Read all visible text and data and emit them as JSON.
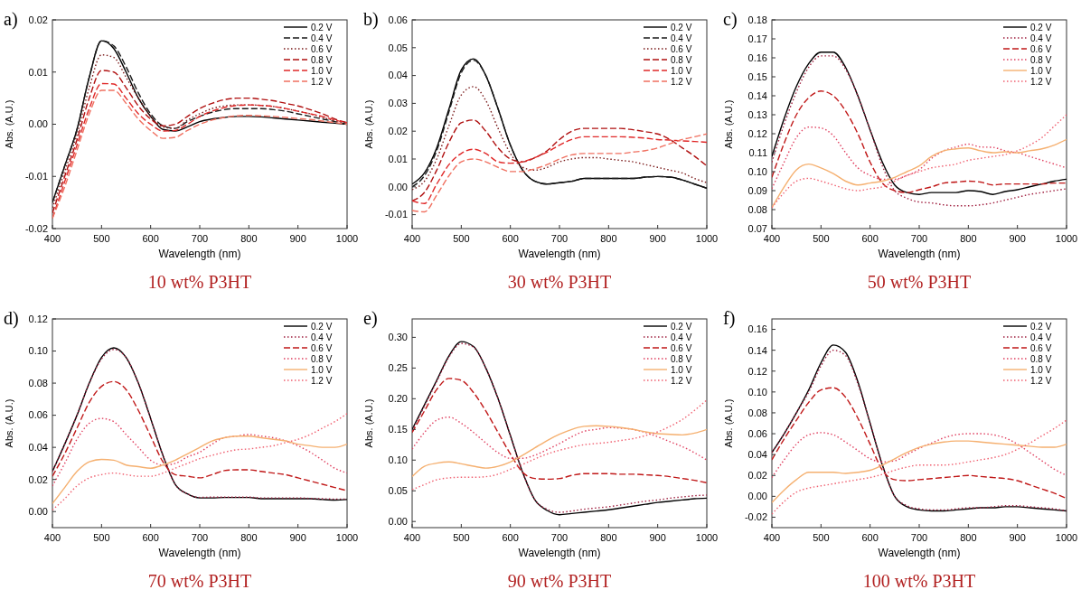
{
  "chart_data": [
    {
      "type": "line",
      "title": "10 wt% P3HT",
      "annotations": [
        "a)"
      ],
      "xlabel": "Wavelength (nm)",
      "ylabel": "Abs. (A.U.)",
      "legend": "top right",
      "xlim": [
        400,
        1000
      ],
      "xticks": [
        400,
        500,
        600,
        700,
        800,
        900,
        1000
      ],
      "ylim": [
        -0.02,
        0.02
      ],
      "yticks": [
        -0.02,
        -0.01,
        {
          "value": 0,
          "label": "0.00"
        },
        0.01,
        0.02
      ],
      "x": [
        400,
        425,
        450,
        475,
        500,
        525,
        550,
        575,
        600,
        625,
        650,
        675,
        700,
        725,
        750,
        775,
        800,
        825,
        850,
        875,
        900,
        925,
        950,
        975,
        1000
      ],
      "series": [
        {
          "name": "0.2 V",
          "color": "#000000",
          "line_style": "solid",
          "values": [
            -0.015,
            -0.008,
            -0.001,
            0.009,
            0.016,
            0.0145,
            0.01,
            0.005,
            0.0015,
            -0.001,
            -0.0013,
            -0.0005,
            0.0005,
            0.001,
            0.0013,
            0.0015,
            0.0015,
            0.0014,
            0.0012,
            0.001,
            0.0008,
            0.0006,
            0.0004,
            0.0002,
            0.0
          ]
        },
        {
          "name": "0.4 V",
          "color": "#1a1a1a",
          "line_style": "dashed",
          "values": [
            -0.015,
            -0.008,
            -0.001,
            0.009,
            0.016,
            0.015,
            0.011,
            0.006,
            0.002,
            -0.0003,
            -0.0008,
            0.0005,
            0.0015,
            0.0023,
            0.0028,
            0.003,
            0.003,
            0.003,
            0.0028,
            0.0025,
            0.002,
            0.0015,
            0.001,
            0.0005,
            0.0
          ]
        },
        {
          "name": "0.6 V",
          "color": "#7a1a1a",
          "line_style": "dotted",
          "values": [
            -0.016,
            -0.009,
            -0.002,
            0.007,
            0.0133,
            0.0128,
            0.009,
            0.005,
            0.0015,
            -0.0005,
            -0.0008,
            0.0008,
            0.002,
            0.003,
            0.0035,
            0.0037,
            0.0037,
            0.0036,
            0.0034,
            0.003,
            0.0025,
            0.002,
            0.0013,
            0.0007,
            0.0003
          ]
        },
        {
          "name": "0.8 V",
          "color": "#b01010",
          "line_style": "dashed",
          "values": [
            -0.017,
            -0.01,
            -0.003,
            0.005,
            0.0103,
            0.01,
            0.007,
            0.0035,
            0.001,
            -0.0003,
            0.0,
            0.0015,
            0.003,
            0.004,
            0.0047,
            0.005,
            0.005,
            0.0048,
            0.0045,
            0.004,
            0.0035,
            0.0028,
            0.002,
            0.001,
            0.0003
          ]
        },
        {
          "name": "1.0 V",
          "color": "#e02828",
          "line_style": "dashed",
          "values": [
            -0.018,
            -0.011,
            -0.004,
            0.003,
            0.0078,
            0.0077,
            0.005,
            0.002,
            0.0,
            -0.0013,
            -0.0012,
            0.0,
            0.0015,
            0.0025,
            0.0032,
            0.0036,
            0.0037,
            0.0036,
            0.0034,
            0.003,
            0.0025,
            0.002,
            0.0015,
            0.0008,
            0.0003
          ]
        },
        {
          "name": "1.2 V",
          "color": "#f07060",
          "line_style": "dashed",
          "values": [
            -0.018,
            -0.012,
            -0.005,
            0.002,
            0.0065,
            0.0065,
            0.004,
            0.001,
            -0.0012,
            -0.0027,
            -0.0025,
            -0.0012,
            0.0,
            0.0008,
            0.0013,
            0.0016,
            0.0017,
            0.0016,
            0.0015,
            0.0013,
            0.0011,
            0.0009,
            0.0006,
            0.0003,
            0.0
          ]
        }
      ]
    },
    {
      "type": "line",
      "title": "30 wt% P3HT",
      "annotations": [
        "b)"
      ],
      "xlabel": "Wavelength (nm)",
      "ylabel": "Abs. (A.U.)",
      "legend": "top right",
      "xlim": [
        400,
        1000
      ],
      "xticks": [
        400,
        500,
        600,
        700,
        800,
        900,
        1000
      ],
      "ylim": [
        -0.015,
        0.06
      ],
      "yticks": [
        -0.01,
        {
          "value": 0,
          "label": "0.00"
        },
        0.01,
        0.02,
        0.03,
        0.04,
        0.05,
        0.06
      ],
      "x": [
        400,
        425,
        450,
        475,
        500,
        525,
        550,
        575,
        600,
        625,
        650,
        675,
        700,
        725,
        750,
        775,
        800,
        825,
        850,
        875,
        900,
        925,
        950,
        975,
        1000
      ],
      "series": [
        {
          "name": "0.2 V",
          "color": "#000000",
          "line_style": "solid",
          "values": [
            0.001,
            0.005,
            0.014,
            0.028,
            0.042,
            0.046,
            0.04,
            0.028,
            0.015,
            0.006,
            0.002,
            0.001,
            0.0015,
            0.002,
            0.003,
            0.003,
            0.003,
            0.003,
            0.003,
            0.0035,
            0.0037,
            0.0035,
            0.0025,
            0.001,
            -0.0005
          ]
        },
        {
          "name": "0.4 V",
          "color": "#1a1a1a",
          "line_style": "dashed",
          "values": [
            0.0,
            0.004,
            0.013,
            0.027,
            0.041,
            0.0455,
            0.04,
            0.028,
            0.015,
            0.006,
            0.002,
            0.001,
            0.0015,
            0.002,
            0.003,
            0.003,
            0.003,
            0.003,
            0.003,
            0.0035,
            0.0037,
            0.0035,
            0.0025,
            0.001,
            -0.0005
          ]
        },
        {
          "name": "0.6 V",
          "color": "#7a1a1a",
          "line_style": "dotted",
          "values": [
            -0.001,
            0.002,
            0.01,
            0.022,
            0.033,
            0.036,
            0.031,
            0.021,
            0.012,
            0.007,
            0.006,
            0.007,
            0.009,
            0.01,
            0.0105,
            0.0105,
            0.01,
            0.0095,
            0.009,
            0.008,
            0.007,
            0.006,
            0.005,
            0.003,
            0.0015
          ]
        },
        {
          "name": "0.8 V",
          "color": "#b01010",
          "line_style": "dashed",
          "values": [
            -0.005,
            -0.002,
            0.006,
            0.016,
            0.023,
            0.024,
            0.02,
            0.014,
            0.01,
            0.009,
            0.0105,
            0.013,
            0.017,
            0.02,
            0.021,
            0.021,
            0.021,
            0.021,
            0.0205,
            0.0198,
            0.019,
            0.017,
            0.014,
            0.011,
            0.0075
          ]
        },
        {
          "name": "1.0 V",
          "color": "#e02828",
          "line_style": "dashed",
          "values": [
            -0.005,
            -0.006,
            0.001,
            0.008,
            0.012,
            0.0135,
            0.012,
            0.009,
            0.0085,
            0.009,
            0.0105,
            0.0125,
            0.015,
            0.017,
            0.018,
            0.018,
            0.018,
            0.018,
            0.0178,
            0.0175,
            0.017,
            0.0168,
            0.0165,
            0.0163,
            0.016
          ]
        },
        {
          "name": "1.2 V",
          "color": "#f07060",
          "line_style": "dashed",
          "values": [
            -0.0085,
            -0.009,
            -0.003,
            0.004,
            0.009,
            0.01,
            0.009,
            0.007,
            0.0055,
            0.0055,
            0.0065,
            0.008,
            0.01,
            0.0115,
            0.012,
            0.012,
            0.012,
            0.012,
            0.0125,
            0.013,
            0.014,
            0.0155,
            0.017,
            0.018,
            0.019
          ]
        }
      ]
    },
    {
      "type": "line",
      "title": "50 wt% P3HT",
      "annotations": [
        "c)"
      ],
      "xlabel": "Wavelength (nm)",
      "ylabel": "Abs. (A.U.)",
      "legend": "top right",
      "xlim": [
        400,
        1000
      ],
      "xticks": [
        400,
        500,
        600,
        700,
        800,
        900,
        1000
      ],
      "ylim": [
        0.07,
        0.18
      ],
      "yticks": [
        0.07,
        0.08,
        0.09,
        {
          "value": 0.1,
          "label": "0.10"
        },
        0.11,
        0.12,
        0.13,
        0.14,
        0.15,
        0.16,
        0.17,
        0.18
      ],
      "x": [
        400,
        425,
        450,
        475,
        500,
        525,
        550,
        575,
        600,
        625,
        650,
        675,
        700,
        725,
        750,
        775,
        800,
        825,
        850,
        875,
        900,
        925,
        950,
        975,
        1000
      ],
      "series": [
        {
          "name": "0.2 V",
          "color": "#000000",
          "line_style": "solid",
          "values": [
            0.108,
            0.128,
            0.145,
            0.157,
            0.163,
            0.163,
            0.155,
            0.14,
            0.122,
            0.105,
            0.093,
            0.089,
            0.088,
            0.089,
            0.089,
            0.089,
            0.09,
            0.0895,
            0.088,
            0.0895,
            0.0905,
            0.092,
            0.0935,
            0.095,
            0.096
          ]
        },
        {
          "name": "0.4 V",
          "color": "#a02040",
          "line_style": "dotted",
          "values": [
            0.105,
            0.125,
            0.142,
            0.155,
            0.161,
            0.161,
            0.154,
            0.14,
            0.122,
            0.103,
            0.09,
            0.086,
            0.084,
            0.0835,
            0.0825,
            0.082,
            0.082,
            0.0825,
            0.0835,
            0.085,
            0.0865,
            0.088,
            0.089,
            0.09,
            0.091
          ]
        },
        {
          "name": "0.6 V",
          "color": "#c01818",
          "line_style": "dashed",
          "values": [
            0.097,
            0.115,
            0.13,
            0.139,
            0.1425,
            0.14,
            0.132,
            0.12,
            0.105,
            0.094,
            0.09,
            0.089,
            0.0905,
            0.092,
            0.094,
            0.0945,
            0.095,
            0.0945,
            0.093,
            0.0935,
            0.0935,
            0.0935,
            0.0935,
            0.094,
            0.094
          ]
        },
        {
          "name": "0.8 V",
          "color": "#e04060",
          "line_style": "dotted",
          "values": [
            0.091,
            0.105,
            0.118,
            0.1235,
            0.123,
            0.119,
            0.11,
            0.102,
            0.098,
            0.096,
            0.096,
            0.098,
            0.101,
            0.107,
            0.111,
            0.113,
            0.1145,
            0.113,
            0.1128,
            0.111,
            0.11,
            0.108,
            0.106,
            0.104,
            0.102
          ]
        },
        {
          "name": "1.0 V",
          "color": "#f5b070",
          "line_style": "solid",
          "values": [
            0.081,
            0.092,
            0.101,
            0.104,
            0.102,
            0.099,
            0.095,
            0.093,
            0.094,
            0.095,
            0.097,
            0.1,
            0.103,
            0.108,
            0.111,
            0.112,
            0.1125,
            0.111,
            0.11,
            0.1105,
            0.11,
            0.111,
            0.112,
            0.114,
            0.117
          ]
        },
        {
          "name": "1.2 V",
          "color": "#f06070",
          "line_style": "dotted",
          "values": [
            0.081,
            0.089,
            0.095,
            0.0965,
            0.095,
            0.093,
            0.091,
            0.09,
            0.091,
            0.092,
            0.095,
            0.098,
            0.1,
            0.102,
            0.103,
            0.104,
            0.106,
            0.107,
            0.108,
            0.109,
            0.111,
            0.114,
            0.118,
            0.124,
            0.13
          ]
        }
      ]
    },
    {
      "type": "line",
      "title": "70 wt% P3HT",
      "annotations": [
        "d)"
      ],
      "xlabel": "Wavelength (nm)",
      "ylabel": "Abs. (A.U.)",
      "legend": "top right",
      "xlim": [
        400,
        1000
      ],
      "xticks": [
        400,
        500,
        600,
        700,
        800,
        900,
        1000
      ],
      "ylim": [
        -0.01,
        0.12
      ],
      "yticks": [
        {
          "value": 0,
          "label": "0.00"
        },
        0.02,
        0.04,
        0.06,
        0.08,
        {
          "value": 0.1,
          "label": "0.10"
        },
        0.12
      ],
      "x": [
        400,
        425,
        450,
        475,
        500,
        525,
        550,
        575,
        600,
        625,
        650,
        675,
        700,
        725,
        750,
        775,
        800,
        825,
        850,
        875,
        900,
        925,
        950,
        975,
        1000
      ],
      "series": [
        {
          "name": "0.2 V",
          "color": "#000000",
          "line_style": "solid",
          "values": [
            0.025,
            0.042,
            0.06,
            0.08,
            0.096,
            0.102,
            0.096,
            0.08,
            0.058,
            0.035,
            0.017,
            0.011,
            0.0085,
            0.0085,
            0.0088,
            0.0088,
            0.0088,
            0.008,
            0.008,
            0.008,
            0.008,
            0.008,
            0.0075,
            0.0072,
            0.0075
          ]
        },
        {
          "name": "0.4 V",
          "color": "#a02040",
          "line_style": "dotted",
          "values": [
            0.025,
            0.042,
            0.06,
            0.08,
            0.095,
            0.101,
            0.096,
            0.08,
            0.058,
            0.035,
            0.017,
            0.011,
            0.0088,
            0.009,
            0.009,
            0.009,
            0.009,
            0.0085,
            0.0085,
            0.0085,
            0.0085,
            0.0082,
            0.008,
            0.0078,
            0.0078
          ]
        },
        {
          "name": "0.6 V",
          "color": "#c01818",
          "line_style": "dashed",
          "values": [
            0.022,
            0.036,
            0.052,
            0.068,
            0.078,
            0.081,
            0.076,
            0.063,
            0.047,
            0.031,
            0.023,
            0.022,
            0.021,
            0.023,
            0.0255,
            0.026,
            0.026,
            0.025,
            0.024,
            0.023,
            0.021,
            0.019,
            0.017,
            0.015,
            0.013
          ]
        },
        {
          "name": "0.8 V",
          "color": "#e04060",
          "line_style": "dotted",
          "values": [
            0.016,
            0.03,
            0.045,
            0.055,
            0.058,
            0.056,
            0.048,
            0.04,
            0.032,
            0.029,
            0.03,
            0.034,
            0.037,
            0.042,
            0.046,
            0.047,
            0.048,
            0.047,
            0.046,
            0.044,
            0.041,
            0.037,
            0.032,
            0.027,
            0.024
          ]
        },
        {
          "name": "1.0 V",
          "color": "#f5b070",
          "line_style": "solid",
          "values": [
            0.005,
            0.015,
            0.025,
            0.031,
            0.0325,
            0.032,
            0.029,
            0.028,
            0.027,
            0.029,
            0.032,
            0.036,
            0.04,
            0.044,
            0.046,
            0.047,
            0.047,
            0.046,
            0.045,
            0.044,
            0.042,
            0.041,
            0.04,
            0.04,
            0.042
          ]
        },
        {
          "name": "1.2 V",
          "color": "#f06070",
          "line_style": "dotted",
          "values": [
            0.001,
            0.008,
            0.016,
            0.021,
            0.023,
            0.024,
            0.023,
            0.022,
            0.022,
            0.024,
            0.027,
            0.03,
            0.033,
            0.035,
            0.037,
            0.0385,
            0.039,
            0.04,
            0.041,
            0.043,
            0.045,
            0.048,
            0.052,
            0.056,
            0.061
          ]
        }
      ]
    },
    {
      "type": "line",
      "title": "90 wt% P3HT",
      "annotations": [
        "e)"
      ],
      "xlabel": "Wavelength (nm)",
      "ylabel": "Abs. (A.U.)",
      "legend": "top right",
      "xlim": [
        400,
        1000
      ],
      "xticks": [
        400,
        500,
        600,
        700,
        800,
        900,
        1000
      ],
      "ylim": [
        -0.01,
        0.33
      ],
      "yticks": [
        {
          "value": 0,
          "label": "0.00"
        },
        0.05,
        {
          "value": 0.1,
          "label": "0.10"
        },
        0.15,
        {
          "value": 0.2,
          "label": "0.20"
        },
        0.25,
        {
          "value": 0.3,
          "label": "0.30"
        }
      ],
      "x": [
        400,
        425,
        450,
        475,
        500,
        525,
        550,
        575,
        600,
        625,
        650,
        675,
        700,
        725,
        750,
        775,
        800,
        825,
        850,
        875,
        900,
        925,
        950,
        975,
        1000
      ],
      "series": [
        {
          "name": "0.2 V",
          "color": "#000000",
          "line_style": "solid",
          "values": [
            0.15,
            0.19,
            0.23,
            0.27,
            0.293,
            0.285,
            0.25,
            0.2,
            0.14,
            0.08,
            0.035,
            0.018,
            0.011,
            0.013,
            0.015,
            0.017,
            0.019,
            0.022,
            0.025,
            0.028,
            0.031,
            0.033,
            0.035,
            0.037,
            0.038
          ]
        },
        {
          "name": "0.4 V",
          "color": "#a02040",
          "line_style": "dotted",
          "values": [
            0.148,
            0.188,
            0.228,
            0.268,
            0.29,
            0.284,
            0.25,
            0.2,
            0.14,
            0.08,
            0.035,
            0.02,
            0.015,
            0.017,
            0.02,
            0.022,
            0.024,
            0.027,
            0.03,
            0.033,
            0.035,
            0.038,
            0.04,
            0.042,
            0.043
          ]
        },
        {
          "name": "0.6 V",
          "color": "#c01818",
          "line_style": "dashed",
          "values": [
            0.145,
            0.18,
            0.215,
            0.233,
            0.23,
            0.21,
            0.18,
            0.145,
            0.11,
            0.08,
            0.07,
            0.069,
            0.07,
            0.075,
            0.078,
            0.078,
            0.078,
            0.077,
            0.077,
            0.076,
            0.075,
            0.073,
            0.07,
            0.067,
            0.063
          ]
        },
        {
          "name": "0.8 V",
          "color": "#e04060",
          "line_style": "dotted",
          "values": [
            0.118,
            0.145,
            0.165,
            0.17,
            0.16,
            0.145,
            0.128,
            0.112,
            0.103,
            0.103,
            0.108,
            0.117,
            0.127,
            0.138,
            0.147,
            0.15,
            0.153,
            0.152,
            0.15,
            0.145,
            0.138,
            0.13,
            0.122,
            0.112,
            0.1
          ]
        },
        {
          "name": "1.0 V",
          "color": "#f5b070",
          "line_style": "solid",
          "values": [
            0.073,
            0.09,
            0.095,
            0.097,
            0.094,
            0.09,
            0.087,
            0.09,
            0.097,
            0.108,
            0.12,
            0.132,
            0.142,
            0.15,
            0.155,
            0.156,
            0.155,
            0.153,
            0.15,
            0.146,
            0.143,
            0.142,
            0.141,
            0.144,
            0.15
          ]
        },
        {
          "name": "1.2 V",
          "color": "#f06070",
          "line_style": "dotted",
          "values": [
            0.052,
            0.06,
            0.068,
            0.071,
            0.072,
            0.072,
            0.073,
            0.077,
            0.085,
            0.093,
            0.102,
            0.11,
            0.116,
            0.121,
            0.125,
            0.127,
            0.129,
            0.132,
            0.135,
            0.14,
            0.146,
            0.155,
            0.166,
            0.181,
            0.198
          ]
        }
      ]
    },
    {
      "type": "line",
      "title": "100 wt% P3HT",
      "annotations": [
        "f)"
      ],
      "xlabel": "Wavelength (nm)",
      "ylabel": "Abs. (A.U.)",
      "legend": "top right",
      "xlim": [
        400,
        1000
      ],
      "xticks": [
        400,
        500,
        600,
        700,
        800,
        900,
        1000
      ],
      "ylim": [
        -0.03,
        0.17
      ],
      "yticks": [
        -0.02,
        {
          "value": 0,
          "label": "0.00"
        },
        0.02,
        0.04,
        0.06,
        0.08,
        {
          "value": 0.1,
          "label": "0.10"
        },
        0.12,
        0.14,
        0.16
      ],
      "x": [
        400,
        425,
        450,
        475,
        500,
        525,
        550,
        575,
        600,
        625,
        650,
        675,
        700,
        725,
        750,
        775,
        800,
        825,
        850,
        875,
        900,
        925,
        950,
        975,
        1000
      ],
      "series": [
        {
          "name": "0.2 V",
          "color": "#000000",
          "line_style": "solid",
          "values": [
            0.042,
            0.06,
            0.08,
            0.102,
            0.128,
            0.145,
            0.138,
            0.11,
            0.07,
            0.03,
            0.0,
            -0.01,
            -0.013,
            -0.014,
            -0.014,
            -0.013,
            -0.012,
            -0.011,
            -0.011,
            -0.01,
            -0.01,
            -0.011,
            -0.012,
            -0.013,
            -0.014
          ]
        },
        {
          "name": "0.4 V",
          "color": "#a02040",
          "line_style": "dotted",
          "values": [
            0.042,
            0.06,
            0.08,
            0.1,
            0.125,
            0.14,
            0.135,
            0.108,
            0.07,
            0.03,
            0.0,
            -0.009,
            -0.012,
            -0.013,
            -0.013,
            -0.012,
            -0.011,
            -0.011,
            -0.01,
            -0.009,
            -0.009,
            -0.01,
            -0.011,
            -0.012,
            -0.014
          ]
        },
        {
          "name": "0.6 V",
          "color": "#c01818",
          "line_style": "dashed",
          "values": [
            0.035,
            0.055,
            0.073,
            0.09,
            0.102,
            0.104,
            0.095,
            0.075,
            0.05,
            0.025,
            0.016,
            0.015,
            0.016,
            0.017,
            0.018,
            0.019,
            0.02,
            0.019,
            0.018,
            0.017,
            0.015,
            0.011,
            0.007,
            0.003,
            -0.002
          ]
        },
        {
          "name": "0.8 V",
          "color": "#e04060",
          "line_style": "dotted",
          "values": [
            0.018,
            0.035,
            0.05,
            0.059,
            0.061,
            0.059,
            0.052,
            0.044,
            0.036,
            0.033,
            0.034,
            0.04,
            0.046,
            0.051,
            0.056,
            0.059,
            0.06,
            0.06,
            0.059,
            0.056,
            0.05,
            0.042,
            0.034,
            0.026,
            0.02
          ]
        },
        {
          "name": "1.0 V",
          "color": "#f5b070",
          "line_style": "solid",
          "values": [
            -0.006,
            0.006,
            0.016,
            0.023,
            0.023,
            0.023,
            0.022,
            0.023,
            0.025,
            0.03,
            0.036,
            0.042,
            0.047,
            0.05,
            0.052,
            0.053,
            0.053,
            0.052,
            0.051,
            0.05,
            0.049,
            0.048,
            0.047,
            0.047,
            0.05
          ]
        },
        {
          "name": "1.2 V",
          "color": "#f06070",
          "line_style": "dotted",
          "values": [
            -0.017,
            -0.005,
            0.004,
            0.008,
            0.01,
            0.012,
            0.014,
            0.016,
            0.018,
            0.021,
            0.025,
            0.028,
            0.03,
            0.03,
            0.03,
            0.031,
            0.033,
            0.035,
            0.037,
            0.04,
            0.045,
            0.051,
            0.058,
            0.065,
            0.073
          ]
        }
      ]
    }
  ]
}
